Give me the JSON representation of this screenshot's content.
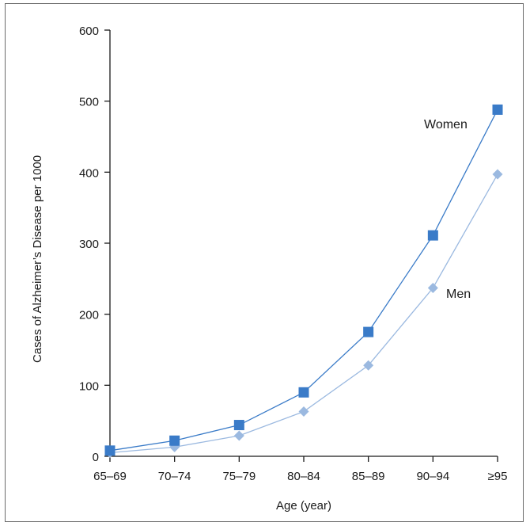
{
  "chart_data": {
    "type": "line",
    "title": "",
    "xlabel": "Age (year)",
    "ylabel": "Cases of Alzheimer’s Disease per 1000",
    "categories": [
      "65–69",
      "70–74",
      "75–79",
      "80–84",
      "85–89",
      "90–94",
      "≥95"
    ],
    "ylim": [
      0,
      600
    ],
    "yticks": [
      0,
      100,
      200,
      300,
      400,
      500,
      600
    ],
    "grid": false,
    "legend": "inline labels",
    "series": [
      {
        "name": "Women",
        "marker": "square",
        "color": "#3a7bc8",
        "values": [
          8,
          22,
          44,
          90,
          175,
          311,
          488
        ]
      },
      {
        "name": "Men",
        "marker": "diamond",
        "color": "#9bb9e0",
        "values": [
          5,
          13,
          29,
          63,
          128,
          237,
          397
        ]
      }
    ]
  }
}
